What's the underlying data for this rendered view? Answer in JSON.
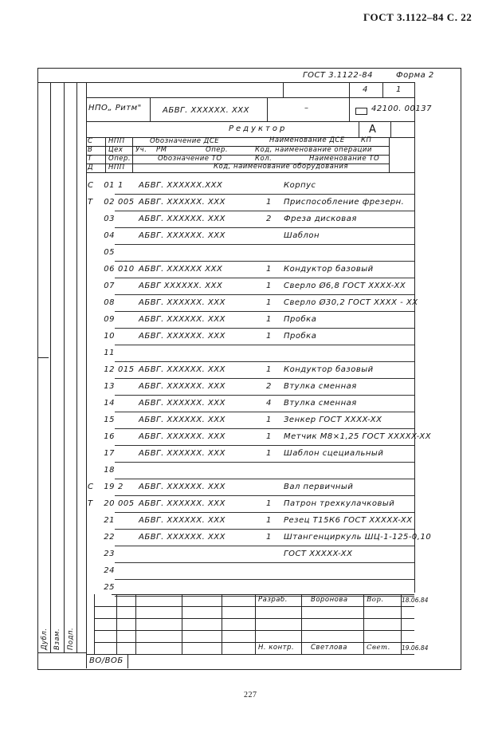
{
  "page_header": "ГОСТ 3.1122–84 С. 22",
  "form": {
    "standard": "ГОСТ 3.1122-84",
    "form_label": "Форма 2",
    "sheets": "4",
    "sheet": "1",
    "organization": "НПО„ Ритм\"",
    "designation": "АБВГ. XXXXXX. XXX",
    "dash": "–",
    "code": "42100. 00137",
    "title": "Редуктор",
    "letter": "А"
  },
  "legend": [
    {
      "key": "С",
      "cells": [
        "НПП",
        "Обозначение ДСЕ",
        "Наименование ДСЕ",
        "КП"
      ]
    },
    {
      "key": "В",
      "cells": [
        "Цех",
        "Уч.",
        "РМ",
        "Опер.",
        "Код, наименование операции"
      ]
    },
    {
      "key": "Т",
      "cells": [
        "Опер.",
        "Обозначение ТО",
        "Кол.",
        "Наименование ТО"
      ]
    },
    {
      "key": "Д",
      "cells": [
        "НПП",
        "Код, наименование оборудования"
      ]
    }
  ],
  "rows": [
    {
      "pre": "С",
      "num": "01",
      "op": "1",
      "des": "АБВГ. XXXXXX.XXX",
      "q": "",
      "name": "Корпус"
    },
    {
      "pre": "Т",
      "num": "02",
      "op": "005",
      "des": "АБВГ. XXXXXX. XXX",
      "q": "1",
      "name": "Приспособление фрезерн."
    },
    {
      "pre": "",
      "num": "03",
      "op": "",
      "des": "АБВГ. XXXXXX. XXX",
      "q": "2",
      "name": "Фреза дисковая"
    },
    {
      "pre": "",
      "num": "04",
      "op": "",
      "des": "АБВГ. XXXXXX. XXX",
      "q": "",
      "name": "Шаблон"
    },
    {
      "pre": "",
      "num": "05",
      "op": "",
      "des": "",
      "q": "",
      "name": ""
    },
    {
      "pre": "",
      "num": "06",
      "op": "010",
      "des": "АБВГ. XXXXXX XXX",
      "q": "1",
      "name": "Кондуктор базовый"
    },
    {
      "pre": "",
      "num": "07",
      "op": "",
      "des": "АБВГ XXXXXX. XXX",
      "q": "1",
      "name": "Сверло Ø6,8 ГОСТ XXXX-XX"
    },
    {
      "pre": "",
      "num": "08",
      "op": "",
      "des": "АБВГ. XXXXXX. XXX",
      "q": "1",
      "name": "Сверло Ø30,2 ГОСТ XXXX - XX"
    },
    {
      "pre": "",
      "num": "09",
      "op": "",
      "des": "АБВГ. XXXXXX. XXX",
      "q": "1",
      "name": "Пробка"
    },
    {
      "pre": "",
      "num": "10",
      "op": "",
      "des": "АБВГ. XXXXXX. XXX",
      "q": "1",
      "name": "Пробка"
    },
    {
      "pre": "",
      "num": "11",
      "op": "",
      "des": "",
      "q": "",
      "name": ""
    },
    {
      "pre": "",
      "num": "12",
      "op": "015",
      "des": "АБВГ. XXXXXX. XXX",
      "q": "1",
      "name": "Кондуктор базовый"
    },
    {
      "pre": "",
      "num": "13",
      "op": "",
      "des": "АБВГ. XXXXXX. XXX",
      "q": "2",
      "name": "Втулка сменная"
    },
    {
      "pre": "",
      "num": "14",
      "op": "",
      "des": "АБВГ. XXXXXX. XXX",
      "q": "4",
      "name": "Втулка сменная"
    },
    {
      "pre": "",
      "num": "15",
      "op": "",
      "des": "АБВГ. XXXXXX. XXX",
      "q": "1",
      "name": "Зенкер ГОСТ XXXX-XX"
    },
    {
      "pre": "",
      "num": "16",
      "op": "",
      "des": "АБВГ. XXXXXX. XXX",
      "q": "1",
      "name": "Метчик М8×1,25 ГОСТ XXXXX-XX"
    },
    {
      "pre": "",
      "num": "17",
      "op": "",
      "des": "АБВГ. XXXXXX. XXX",
      "q": "1",
      "name": "Шаблон сцециальный"
    },
    {
      "pre": "",
      "num": "18",
      "op": "",
      "des": "",
      "q": "",
      "name": ""
    },
    {
      "pre": "С",
      "num": "19",
      "op": "2",
      "des": "АБВГ. XXXXXX. XXX",
      "q": "",
      "name": "Вал первичный"
    },
    {
      "pre": "Т",
      "num": "20",
      "op": "005",
      "des": "АБВГ. XXXXXX. XXX",
      "q": "1",
      "name": "Патрон трехкулачковый"
    },
    {
      "pre": "",
      "num": "21",
      "op": "",
      "des": "АБВГ. XXXXXX. XXX",
      "q": "1",
      "name": "Резец Т15К6 ГОСТ XXXXX-XX"
    },
    {
      "pre": "",
      "num": "22",
      "op": "",
      "des": "АБВГ. XXXXXX. XXX",
      "q": "1",
      "name": "Штангенциркуль ШЦ-1-125-0,10"
    },
    {
      "pre": "",
      "num": "23",
      "op": "",
      "des": "",
      "q": "",
      "name": "ГОСТ XXXXX-XX"
    },
    {
      "pre": "",
      "num": "24",
      "op": "",
      "des": "",
      "q": "",
      "name": ""
    },
    {
      "pre": "",
      "num": "25",
      "op": "",
      "des": "",
      "q": "",
      "name": ""
    }
  ],
  "stamp": {
    "dev_label": "Разраб.",
    "dev_name": "Воронова",
    "dev_sign": "Вор.",
    "dev_date": "18.06.84",
    "ctrl_label": "Н. контр.",
    "ctrl_name": "Светлова",
    "ctrl_sign": "Свет.",
    "ctrl_date": "19.06.84",
    "side_labels": [
      "Дубл.",
      "Взам.",
      "Подп."
    ],
    "form_code": "ВО/ВОБ"
  },
  "page_number": "227"
}
